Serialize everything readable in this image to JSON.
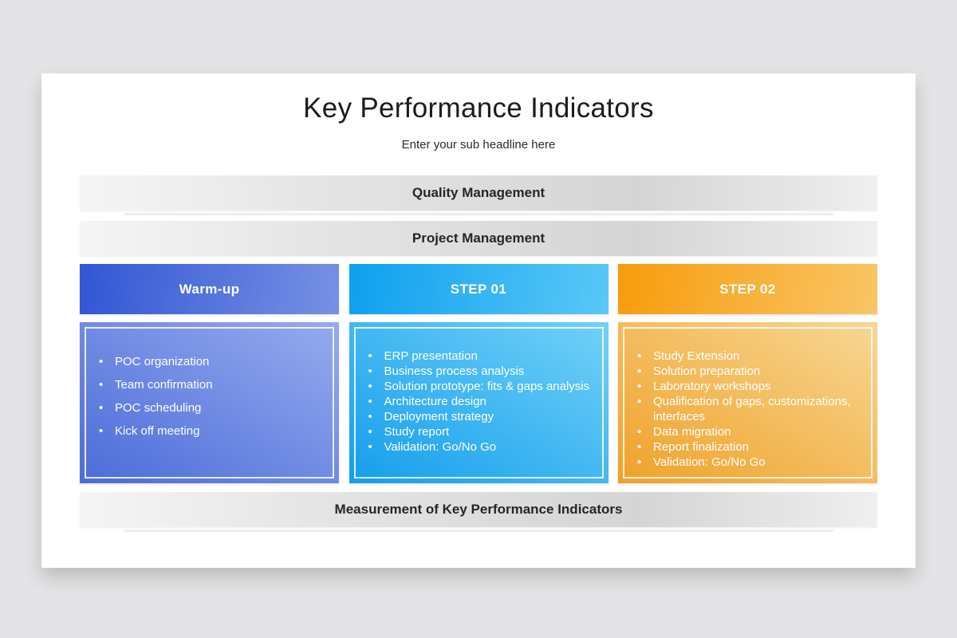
{
  "slide": {
    "title": "Key Performance Indicators",
    "subtitle": "Enter your sub headline here",
    "bullet": "•",
    "bars": {
      "quality": {
        "label": "Quality Management"
      },
      "project": {
        "label": "Project Management"
      },
      "measurement": {
        "label": "Measurement of Key Performance Indicators"
      }
    },
    "columns": [
      {
        "header": "Warm-up",
        "accent": {
          "header_from": "#3156d4",
          "header_to": "#7791e4",
          "body_from": "#4b6cd9",
          "body_to": "#96abee"
        },
        "items": [
          "POC organization",
          "Team confirmation",
          "POC scheduling",
          "Kick off meeting"
        ]
      },
      {
        "header": "STEP 01",
        "accent": {
          "header_from": "#0da0ee",
          "header_to": "#5ac8f7",
          "body_from": "#149eec",
          "body_to": "#72d1f8"
        },
        "items": [
          "ERP presentation",
          "Business process analysis",
          "Solution prototype: fits & gaps analysis",
          "Architecture design",
          "Deployment strategy",
          "Study report",
          "Validation: Go/No Go"
        ]
      },
      {
        "header": "STEP 02",
        "accent": {
          "header_from": "#f89c0c",
          "header_to": "#f9c566",
          "body_from": "#efa128",
          "body_to": "#f8d794"
        },
        "items": [
          "Study Extension",
          "Solution preparation",
          "Laboratory workshops",
          "Qualification of gaps, customizations, interfaces",
          "Data migration",
          "Report finalization",
          "Validation: Go/No Go"
        ]
      }
    ],
    "text_color": "#ffffff",
    "bar_text_color": "#262626",
    "card_background": "#ffffff",
    "page_background": "#e4e4e6"
  }
}
